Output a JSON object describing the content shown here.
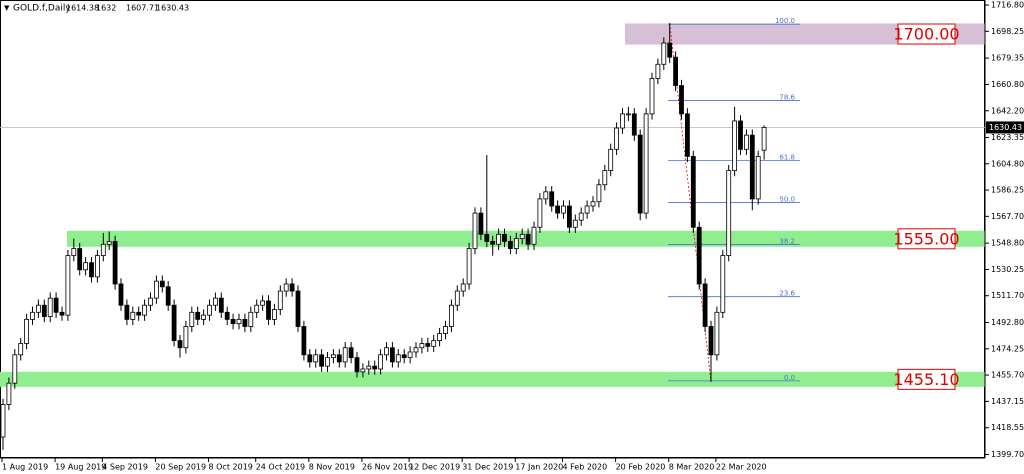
{
  "chart_data": {
    "type": "candlestick",
    "symbol": "GOLD.f,Daily",
    "ylim": [
      1397.2,
      1720.35
    ],
    "yticks": [
      {
        "value": 1716.8,
        "label": "1716.80"
      },
      1698.25,
      1679.35,
      {
        "value": 1660.8,
        "label": "1660.80"
      },
      {
        "value": 1642.2,
        "label": "1642.20"
      },
      1623.35,
      {
        "value": 1604.8,
        "label": "1604.80"
      },
      1586.25,
      {
        "value": 1567.7,
        "label": "1567.70"
      },
      {
        "value": 1548.8,
        "label": "1548.80"
      },
      1530.25,
      {
        "value": 1511.7,
        "label": "1511.70"
      },
      {
        "value": 1492.8,
        "label": "1492.80"
      },
      1474.25,
      {
        "value": 1455.7,
        "label": "1455.70"
      },
      1437.15,
      1418.55,
      {
        "value": 1399.7,
        "label": "1399.70"
      }
    ],
    "categories": [
      "1 Aug 2019",
      null,
      null,
      null,
      null,
      null,
      null,
      null,
      null,
      "19 Aug 2019",
      null,
      null,
      null,
      null,
      null,
      null,
      null,
      "4 Sep 2019",
      null,
      null,
      null,
      null,
      null,
      null,
      null,
      null,
      "20 Sep 2019",
      null,
      null,
      null,
      null,
      null,
      null,
      null,
      null,
      "8 Oct 2019",
      null,
      null,
      null,
      null,
      null,
      null,
      null,
      "24 Oct 2019",
      null,
      null,
      null,
      null,
      null,
      null,
      null,
      null,
      "8 Nov 2019",
      null,
      null,
      null,
      null,
      null,
      null,
      null,
      null,
      "26 Nov 2019",
      null,
      null,
      null,
      null,
      null,
      null,
      null,
      "12 Dec 2019",
      null,
      null,
      null,
      null,
      null,
      null,
      null,
      null,
      "31 Dec 2019",
      null,
      null,
      null,
      null,
      null,
      null,
      null,
      null,
      "17 Jan 2020",
      null,
      null,
      null,
      null,
      null,
      null,
      null,
      "4 Feb 2020",
      null,
      null,
      null,
      null,
      null,
      null,
      null,
      null,
      "20 Feb 2020",
      null,
      null,
      null,
      null,
      null,
      null,
      null,
      null,
      "8 Mar 2020",
      null,
      null,
      null,
      null,
      null,
      null,
      null,
      "22 Mar 2020",
      null,
      null,
      null,
      null,
      null,
      null,
      null,
      null
    ],
    "ohlc": [
      [
        1412,
        1439,
        1403,
        1435
      ],
      [
        1435,
        1454,
        1431,
        1450
      ],
      [
        1450,
        1474,
        1446,
        1470
      ],
      [
        1470,
        1482,
        1466,
        1478
      ],
      [
        1478,
        1499,
        1474,
        1495
      ],
      [
        1495,
        1504,
        1491,
        1500
      ],
      [
        1500,
        1509,
        1496,
        1505
      ],
      [
        1505,
        1509,
        1493,
        1497
      ],
      [
        1497,
        1514,
        1493,
        1510
      ],
      [
        1510,
        1514,
        1496,
        1500
      ],
      [
        1500,
        1504,
        1494,
        1498
      ],
      [
        1498,
        1544,
        1494,
        1540
      ],
      [
        1540,
        1552,
        1536,
        1545
      ],
      [
        1545,
        1549,
        1526,
        1530
      ],
      [
        1530,
        1539,
        1526,
        1535
      ],
      [
        1535,
        1539,
        1521,
        1525
      ],
      [
        1525,
        1544,
        1521,
        1540
      ],
      [
        1540,
        1556,
        1536,
        1548
      ],
      [
        1548,
        1557,
        1544,
        1550
      ],
      [
        1550,
        1554,
        1516,
        1520
      ],
      [
        1520,
        1524,
        1501,
        1505
      ],
      [
        1505,
        1509,
        1491,
        1495
      ],
      [
        1495,
        1504,
        1491,
        1500
      ],
      [
        1500,
        1504,
        1494,
        1498
      ],
      [
        1498,
        1509,
        1494,
        1505
      ],
      [
        1505,
        1514,
        1501,
        1510
      ],
      [
        1510,
        1526,
        1506,
        1522
      ],
      [
        1522,
        1526,
        1514,
        1518
      ],
      [
        1518,
        1522,
        1501,
        1505
      ],
      [
        1505,
        1509,
        1476,
        1480
      ],
      [
        1480,
        1484,
        1468,
        1475
      ],
      [
        1475,
        1494,
        1471,
        1490
      ],
      [
        1490,
        1504,
        1486,
        1500
      ],
      [
        1500,
        1504,
        1491,
        1495
      ],
      [
        1495,
        1502,
        1491,
        1498
      ],
      [
        1498,
        1509,
        1494,
        1505
      ],
      [
        1505,
        1514,
        1501,
        1510
      ],
      [
        1510,
        1514,
        1496,
        1500
      ],
      [
        1500,
        1504,
        1491,
        1495
      ],
      [
        1495,
        1499,
        1488,
        1492
      ],
      [
        1492,
        1499,
        1488,
        1495
      ],
      [
        1495,
        1499,
        1486,
        1490
      ],
      [
        1490,
        1504,
        1486,
        1500
      ],
      [
        1500,
        1509,
        1496,
        1505
      ],
      [
        1505,
        1512,
        1501,
        1508
      ],
      [
        1508,
        1512,
        1491,
        1495
      ],
      [
        1495,
        1506,
        1491,
        1502
      ],
      [
        1502,
        1519,
        1498,
        1515
      ],
      [
        1515,
        1524,
        1511,
        1520
      ],
      [
        1520,
        1524,
        1511,
        1515
      ],
      [
        1515,
        1519,
        1486,
        1490
      ],
      [
        1490,
        1494,
        1466,
        1470
      ],
      [
        1470,
        1474,
        1461,
        1465
      ],
      [
        1465,
        1474,
        1461,
        1470
      ],
      [
        1470,
        1474,
        1458,
        1462
      ],
      [
        1462,
        1472,
        1458,
        1468
      ],
      [
        1468,
        1474,
        1464,
        1470
      ],
      [
        1470,
        1474,
        1461,
        1465
      ],
      [
        1465,
        1479,
        1461,
        1475
      ],
      [
        1475,
        1479,
        1464,
        1468
      ],
      [
        1468,
        1472,
        1454,
        1458
      ],
      [
        1458,
        1464,
        1454,
        1460
      ],
      [
        1460,
        1466,
        1456,
        1462
      ],
      [
        1462,
        1466,
        1456,
        1460
      ],
      [
        1460,
        1474,
        1456,
        1470
      ],
      [
        1470,
        1479,
        1466,
        1475
      ],
      [
        1475,
        1479,
        1461,
        1465
      ],
      [
        1465,
        1474,
        1461,
        1470
      ],
      [
        1470,
        1474,
        1464,
        1468
      ],
      [
        1468,
        1476,
        1464,
        1472
      ],
      [
        1472,
        1479,
        1468,
        1475
      ],
      [
        1475,
        1482,
        1471,
        1478
      ],
      [
        1478,
        1482,
        1472,
        1476
      ],
      [
        1476,
        1484,
        1472,
        1480
      ],
      [
        1480,
        1489,
        1476,
        1485
      ],
      [
        1485,
        1494,
        1481,
        1490
      ],
      [
        1490,
        1509,
        1486,
        1505
      ],
      [
        1505,
        1519,
        1501,
        1515
      ],
      [
        1515,
        1524,
        1511,
        1520
      ],
      [
        1520,
        1549,
        1516,
        1545
      ],
      [
        1545,
        1574,
        1541,
        1570
      ],
      [
        1570,
        1574,
        1551,
        1555
      ],
      [
        1555,
        1611,
        1546,
        1550
      ],
      [
        1550,
        1554,
        1540,
        1548
      ],
      [
        1548,
        1559,
        1544,
        1555
      ],
      [
        1555,
        1559,
        1546,
        1550
      ],
      [
        1550,
        1554,
        1541,
        1545
      ],
      [
        1545,
        1556,
        1541,
        1552
      ],
      [
        1552,
        1559,
        1548,
        1555
      ],
      [
        1555,
        1559,
        1544,
        1548
      ],
      [
        1548,
        1564,
        1544,
        1560
      ],
      [
        1560,
        1584,
        1556,
        1580
      ],
      [
        1580,
        1589,
        1576,
        1585
      ],
      [
        1585,
        1589,
        1571,
        1575
      ],
      [
        1575,
        1579,
        1566,
        1570
      ],
      [
        1570,
        1579,
        1566,
        1575
      ],
      [
        1575,
        1579,
        1556,
        1560
      ],
      [
        1560,
        1569,
        1556,
        1565
      ],
      [
        1565,
        1574,
        1561,
        1570
      ],
      [
        1570,
        1579,
        1566,
        1575
      ],
      [
        1575,
        1582,
        1571,
        1578
      ],
      [
        1578,
        1594,
        1574,
        1590
      ],
      [
        1590,
        1604,
        1586,
        1600
      ],
      [
        1600,
        1619,
        1596,
        1615
      ],
      [
        1615,
        1634,
        1611,
        1630
      ],
      [
        1630,
        1644,
        1626,
        1640
      ],
      [
        1640,
        1645,
        1635,
        1640
      ],
      [
        1640,
        1644,
        1621,
        1625
      ],
      [
        1625,
        1629,
        1565,
        1570
      ],
      [
        1570,
        1644,
        1566,
        1640
      ],
      [
        1640,
        1669,
        1636,
        1665
      ],
      [
        1665,
        1679,
        1661,
        1675
      ],
      [
        1675,
        1694,
        1671,
        1690
      ],
      [
        1690,
        1704,
        1676,
        1680
      ],
      [
        1680,
        1684,
        1656,
        1660
      ],
      [
        1660,
        1664,
        1636,
        1640
      ],
      [
        1640,
        1644,
        1606,
        1610
      ],
      [
        1610,
        1614,
        1556,
        1560
      ],
      [
        1560,
        1564,
        1516,
        1520
      ],
      [
        1520,
        1524,
        1486,
        1490
      ],
      [
        1490,
        1494,
        1451,
        1470
      ],
      [
        1470,
        1504,
        1466,
        1500
      ],
      [
        1500,
        1544,
        1496,
        1540
      ],
      [
        1540,
        1604,
        1536,
        1600
      ],
      [
        1600,
        1645,
        1596,
        1635
      ],
      [
        1635,
        1639,
        1611,
        1615
      ],
      [
        1615,
        1629,
        1611,
        1625
      ],
      [
        1625,
        1629,
        1572,
        1580
      ],
      [
        1580,
        1614,
        1576,
        1610
      ],
      [
        1614.38,
        1632.0,
        1607.71,
        1630.43
      ]
    ],
    "zones": [
      {
        "from": 1688.9,
        "to": 1703.8,
        "color": "#d8bfd8",
        "label": "1700.00"
      },
      {
        "from": 1546.2,
        "to": 1557.5,
        "color": "#90ee90",
        "label": "1555.00"
      },
      {
        "from": 1447.4,
        "to": 1458.0,
        "color": "#90ee90",
        "label": "1455.10"
      }
    ],
    "fibonacci": [
      {
        "price": 1703.3,
        "label": "100.0"
      },
      {
        "price": 1649.4,
        "label": "78.6"
      },
      {
        "price": 1607.2,
        "label": "61.8"
      },
      {
        "price": 1577.5,
        "label": "50.0"
      },
      {
        "price": 1547.8,
        "label": "38.2"
      },
      {
        "price": 1511.0,
        "label": "23.6"
      },
      {
        "price": 1451.6,
        "label": "0.0"
      }
    ]
  }
}
